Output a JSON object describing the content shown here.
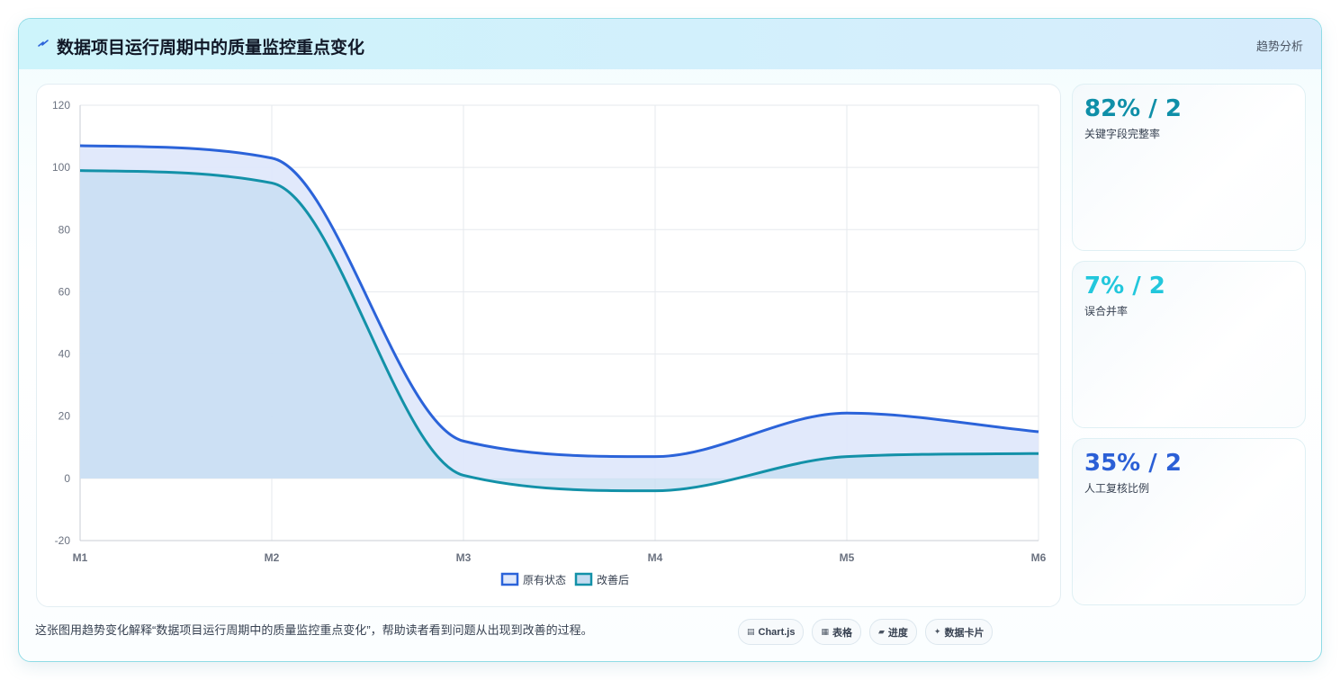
{
  "header": {
    "title": "数据项目运行周期中的质量监控重点变化",
    "tag": "趋势分析"
  },
  "chart_data": {
    "type": "area",
    "categories": [
      "M1",
      "M2",
      "M3",
      "M4",
      "M5",
      "M6"
    ],
    "series": [
      {
        "name": "原有状态",
        "values": [
          107,
          103,
          12,
          7,
          21,
          15
        ],
        "color": "#2b63d9",
        "fill": "#dfe8fb"
      },
      {
        "name": "改善后",
        "values": [
          99,
          95,
          1,
          -4,
          7,
          8
        ],
        "color": "#1391a8",
        "fill": "#c4dcf1"
      }
    ],
    "ylim": [
      -20,
      120
    ],
    "yticks": [
      -20,
      0,
      20,
      40,
      60,
      80,
      100,
      120
    ],
    "grid": true,
    "legend": "bottom"
  },
  "stats": [
    {
      "value": "82% / 2",
      "label": "关键字段完整率",
      "color": "#0f8fa8"
    },
    {
      "value": "7% / 2",
      "label": "误合并率",
      "color": "#22c7dc"
    },
    {
      "value": "35% / 2",
      "label": "人工复核比例",
      "color": "#2b5fd6"
    }
  ],
  "caption": "这张图用趋势变化解释“数据项目运行周期中的质量监控重点变化”，帮助读者看到问题从出现到改善的过程。",
  "pills": [
    {
      "icon": "▤",
      "label": "Chart.js",
      "icon_name": "chart-icon"
    },
    {
      "icon": "▦",
      "label": "表格",
      "icon_name": "table-icon"
    },
    {
      "icon": "▰",
      "label": "进度",
      "icon_name": "progress-icon"
    },
    {
      "icon": "✦",
      "label": "数据卡片",
      "icon_name": "sparkle-icon"
    }
  ]
}
